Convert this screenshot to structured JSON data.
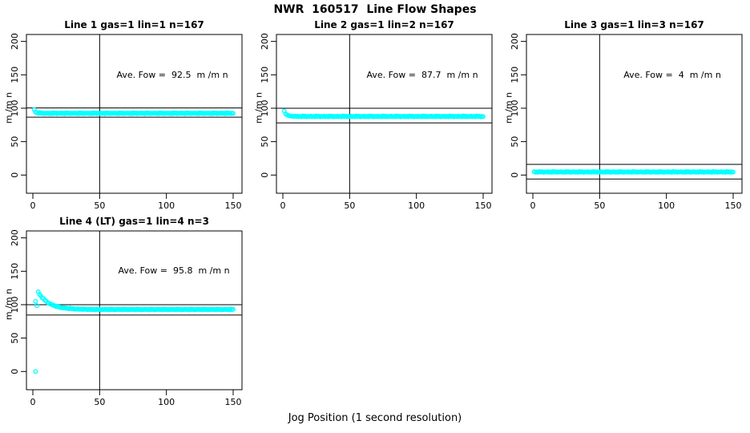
{
  "page_title": "NWR  160517  Line Flow Shapes",
  "xlabel": "Jog Position (1 second resolution)",
  "ylabel": "m /m n",
  "point_color": "#00FFFF",
  "axis_color": "#000000",
  "chart_data": [
    {
      "type": "scatter",
      "title": "Line 1 gas=1 lin=1 n=167",
      "annotation": "Ave. Fow =  92.5  m /m n",
      "ave_flow": 92.5,
      "x_ticks": [
        0,
        50,
        100,
        150
      ],
      "y_ticks": [
        0,
        50,
        100,
        150,
        200
      ],
      "vline": 50,
      "hlines": [
        100.4,
        86.6
      ],
      "x_start": 1,
      "y": [
        98.0,
        94.1,
        93.5,
        92.4,
        93.7,
        92.5,
        93.0,
        91.9,
        92.6,
        92.2,
        93.0,
        92.1,
        92.7,
        91.8,
        93.3,
        92.3,
        92.9,
        91.9,
        92.6,
        92.2,
        93.0,
        92.1,
        92.7,
        91.8,
        93.3,
        92.3,
        92.9,
        91.9,
        92.6,
        92.2,
        93.0,
        92.1,
        92.7,
        91.8,
        93.3,
        92.3,
        92.9,
        91.9,
        92.6,
        92.2,
        93.0,
        92.1,
        92.7,
        91.8,
        93.3,
        92.3,
        92.9,
        91.9,
        92.6,
        92.2,
        93.0,
        92.1,
        92.7,
        91.8,
        93.3,
        92.3,
        92.9,
        91.9,
        92.6,
        92.2,
        93.0,
        92.1,
        92.7,
        91.8,
        93.3,
        92.3,
        92.9,
        91.9,
        92.6,
        92.2,
        93.0,
        92.1,
        92.7,
        91.8,
        93.3,
        92.3,
        92.9,
        91.9,
        92.6,
        92.2,
        93.0,
        92.1,
        92.7,
        91.8,
        93.3,
        92.3,
        92.9,
        91.9,
        92.6,
        92.2,
        93.0,
        92.1,
        92.7,
        91.8,
        93.3,
        92.3,
        92.9,
        91.9,
        92.6,
        92.2,
        93.0,
        92.1,
        92.7,
        91.8,
        93.3,
        92.3,
        92.9,
        91.9,
        92.6,
        92.2,
        93.0,
        92.1,
        92.7,
        91.8,
        93.3,
        92.3,
        92.9,
        91.9,
        92.6,
        92.2,
        93.0,
        92.1,
        92.7,
        91.8,
        93.3,
        92.3,
        92.9,
        91.9,
        92.6,
        92.2,
        93.0,
        92.1,
        92.7,
        91.8,
        93.3,
        92.3,
        92.9,
        91.9,
        92.6,
        92.2,
        93.0,
        92.1,
        92.7,
        91.8,
        93.3,
        92.3,
        92.9,
        91.9,
        92.6,
        92.2
      ]
    },
    {
      "type": "scatter",
      "title": "Line 2 gas=1 lin=2 n=167",
      "annotation": "Ave. Fow =  87.7  m /m n",
      "ave_flow": 87.7,
      "x_ticks": [
        0,
        50,
        100,
        150
      ],
      "y_ticks": [
        0,
        50,
        100,
        150,
        200
      ],
      "vline": 50,
      "hlines": [
        100.0,
        78.0
      ],
      "x_start": 1,
      "y": [
        96.0,
        91.5,
        90.2,
        89.2,
        88.6,
        88.3,
        88.0,
        87.6,
        88.1,
        87.6,
        88.1,
        87.3,
        87.9,
        87.1,
        88.4,
        87.5,
        88.1,
        87.2,
        87.8,
        87.4,
        88.1,
        87.3,
        87.9,
        87.1,
        88.4,
        87.5,
        88.1,
        87.2,
        87.8,
        87.4,
        88.1,
        87.3,
        87.9,
        87.1,
        88.4,
        87.5,
        88.1,
        87.2,
        87.8,
        87.4,
        88.1,
        87.3,
        87.9,
        87.1,
        88.4,
        87.5,
        88.1,
        87.2,
        87.8,
        87.4,
        88.1,
        87.3,
        87.9,
        87.1,
        88.4,
        87.5,
        88.1,
        87.2,
        87.8,
        87.4,
        88.1,
        87.3,
        87.9,
        87.1,
        88.4,
        87.5,
        88.1,
        87.2,
        87.8,
        87.4,
        88.1,
        87.3,
        87.9,
        87.1,
        88.4,
        87.5,
        88.1,
        87.2,
        87.8,
        87.4,
        88.1,
        87.3,
        87.9,
        87.1,
        88.4,
        87.5,
        88.1,
        87.2,
        87.8,
        87.4,
        88.1,
        87.3,
        87.9,
        87.1,
        88.4,
        87.5,
        88.1,
        87.2,
        87.8,
        87.4,
        88.1,
        87.3,
        87.9,
        87.1,
        88.4,
        87.5,
        88.1,
        87.2,
        87.8,
        87.4,
        88.1,
        87.3,
        87.9,
        87.1,
        88.4,
        87.5,
        88.1,
        87.2,
        87.8,
        87.4,
        88.1,
        87.3,
        87.9,
        87.1,
        88.4,
        87.5,
        88.1,
        87.2,
        87.8,
        87.4,
        88.1,
        87.3,
        87.9,
        87.1,
        88.4,
        87.5,
        88.1,
        87.2,
        87.8,
        87.4,
        88.1,
        87.3,
        87.9,
        87.1,
        88.4,
        87.5,
        88.1,
        87.2,
        87.8,
        87.4
      ]
    },
    {
      "type": "scatter",
      "title": "Line 3 gas=1 lin=3 n=167",
      "annotation": "Ave. Fow =  4  m /m n",
      "ave_flow": 4,
      "x_ticks": [
        0,
        50,
        100,
        150
      ],
      "y_ticks": [
        0,
        50,
        100,
        150,
        200
      ],
      "vline": 50,
      "hlines": [
        16.0,
        -6.0
      ],
      "x_start": 1,
      "y": [
        5.0,
        4.2,
        4.8,
        4.0,
        5.3,
        4.4,
        5.0,
        4.1,
        4.7,
        4.3,
        5.0,
        4.2,
        4.8,
        4.0,
        5.3,
        4.4,
        5.0,
        4.1,
        4.7,
        4.3,
        5.0,
        4.2,
        4.8,
        4.0,
        5.3,
        4.4,
        5.0,
        4.1,
        4.7,
        4.3,
        5.0,
        4.2,
        4.8,
        4.0,
        5.3,
        4.4,
        5.0,
        4.1,
        4.7,
        4.3,
        5.0,
        4.2,
        4.8,
        4.0,
        5.3,
        4.4,
        5.0,
        4.1,
        4.7,
        4.3,
        5.0,
        4.2,
        4.8,
        4.0,
        5.3,
        4.4,
        5.0,
        4.1,
        4.7,
        4.3,
        5.0,
        4.2,
        4.8,
        4.0,
        5.3,
        4.4,
        5.0,
        4.1,
        4.7,
        4.3,
        5.0,
        4.2,
        4.8,
        4.0,
        5.3,
        4.4,
        5.0,
        4.1,
        4.7,
        4.3,
        5.0,
        4.2,
        4.8,
        4.0,
        5.3,
        4.4,
        5.0,
        4.1,
        4.7,
        4.3,
        5.0,
        4.2,
        4.8,
        4.0,
        5.3,
        4.4,
        5.0,
        4.1,
        4.7,
        4.3,
        5.0,
        4.2,
        4.8,
        4.0,
        5.3,
        4.4,
        5.0,
        4.1,
        4.7,
        4.3,
        5.0,
        4.2,
        4.8,
        4.0,
        5.3,
        4.4,
        5.0,
        4.1,
        4.7,
        4.3,
        5.0,
        4.2,
        4.8,
        4.0,
        5.3,
        4.4,
        5.0,
        4.1,
        4.7,
        4.3,
        5.0,
        4.2,
        4.8,
        4.0,
        5.3,
        4.4,
        5.0,
        4.1,
        4.7,
        4.3,
        5.0,
        4.2,
        4.8,
        4.0,
        5.3,
        4.4,
        5.0,
        4.1,
        4.7,
        4.3
      ]
    },
    {
      "type": "scatter",
      "title": "Line 4 (LT) gas=1 lin=4 n=3",
      "annotation": "Ave. Fow =  95.8  m /m n",
      "ave_flow": 95.8,
      "x_ticks": [
        0,
        50,
        100,
        150
      ],
      "y_ticks": [
        0,
        50,
        100,
        150,
        200
      ],
      "vline": 50,
      "hlines": [
        100.0,
        84.5
      ],
      "x_start": 4,
      "extra_points": [
        [
          2,
          0
        ],
        [
          2,
          105
        ],
        [
          3,
          98.5
        ]
      ],
      "y": [
        119.2,
        115.4,
        113.2,
        110.1,
        109.1,
        106.5,
        105.4,
        103.1,
        102.4,
        100.9,
        100.6,
        99.0,
        98.8,
        97.4,
        97.9,
        96.6,
        96.6,
        95.4,
        95.6,
        94.9,
        95.3,
        94.4,
        94.6,
        93.7,
        94.7,
        93.7,
        94.1,
        93.2,
        93.7,
        93.2,
        93.8,
        93.0,
        93.5,
        92.7,
        93.7,
        92.9,
        93.4,
        92.5,
        93.2,
        92.6,
        93.2,
        92.5,
        93.0,
        92.3,
        93.4,
        92.6,
        93.1,
        92.3,
        92.9,
        92.5,
        93.2,
        92.5,
        93.0,
        92.3,
        93.4,
        92.6,
        93.1,
        92.3,
        92.9,
        92.5,
        93.2,
        92.5,
        93.0,
        92.3,
        93.4,
        92.6,
        93.1,
        92.3,
        92.9,
        92.5,
        93.2,
        92.5,
        93.0,
        92.3,
        93.4,
        92.6,
        93.1,
        92.3,
        92.9,
        92.5,
        93.2,
        92.5,
        93.0,
        92.3,
        93.4,
        92.6,
        93.1,
        92.3,
        92.9,
        92.5,
        93.2,
        92.5,
        93.0,
        92.3,
        93.4,
        92.6,
        93.1,
        92.3,
        92.9,
        92.5,
        93.2,
        92.5,
        93.0,
        92.3,
        93.4,
        92.6,
        93.1,
        92.3,
        92.9,
        92.5,
        93.2,
        92.5,
        93.0,
        92.3,
        93.4,
        92.6,
        93.1,
        92.3,
        92.9,
        92.5,
        93.2,
        92.5,
        93.0,
        92.3,
        93.4,
        92.6,
        93.1,
        92.3,
        92.9,
        92.5,
        93.2,
        92.5,
        93.0,
        92.3,
        93.4,
        92.6,
        93.1,
        92.3,
        92.9,
        92.5,
        93.2,
        92.5,
        93.0,
        92.3,
        93.4,
        92.6,
        93.1
      ]
    }
  ]
}
